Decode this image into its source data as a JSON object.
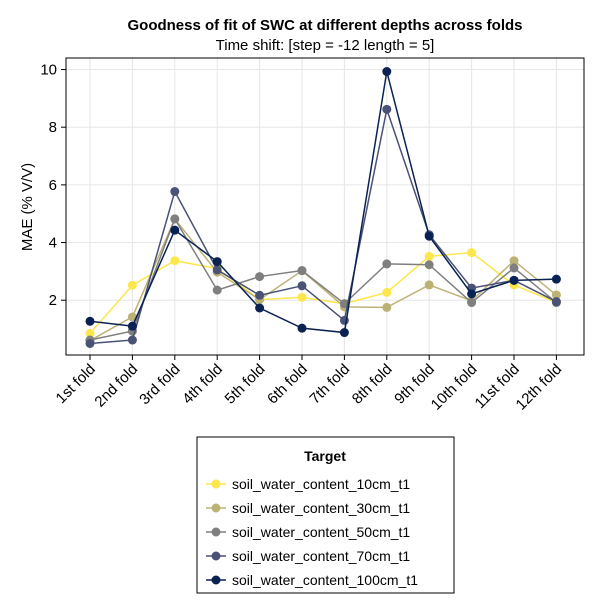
{
  "chart_data": {
    "type": "line",
    "title": "Goodness of fit of SWC at different depths across folds",
    "subtitle": "Time shift: [step = -12 length = 5]",
    "xlabel": "",
    "ylabel": "MAE (% V/V)",
    "categories": [
      "1st fold",
      "2nd fold",
      "3rd fold",
      "4th fold",
      "5th fold",
      "6th fold",
      "7th fold",
      "8th fold",
      "9th fold",
      "10th fold",
      "11st fold",
      "12th fold"
    ],
    "yticks": [
      "2",
      "4",
      "6",
      "8",
      "10"
    ],
    "ylim": [
      0.1,
      10.4
    ],
    "grid": true,
    "legend": {
      "title": "Target",
      "placement": "bottom"
    },
    "series": [
      {
        "name": "soil_water_content_10cm_t1",
        "color": "#fde74c",
        "values": [
          0.85,
          2.52,
          3.37,
          3.1,
          2.02,
          2.1,
          1.88,
          2.27,
          3.52,
          3.65,
          2.53,
          1.92
        ]
      },
      {
        "name": "soil_water_content_30cm_t1",
        "color": "#bdb276",
        "values": [
          0.6,
          1.42,
          4.82,
          2.97,
          2.02,
          3.02,
          1.77,
          1.75,
          2.53,
          1.98,
          3.37,
          2.18
        ]
      },
      {
        "name": "soil_water_content_50cm_t1",
        "color": "#7f7f7f",
        "values": [
          0.62,
          0.93,
          4.82,
          2.35,
          2.82,
          3.03,
          1.88,
          3.26,
          3.23,
          1.92,
          3.12,
          1.92
        ]
      },
      {
        "name": "soil_water_content_70cm_t1",
        "color": "#4a5275",
        "values": [
          0.5,
          0.62,
          5.77,
          3.05,
          2.17,
          2.5,
          1.3,
          8.62,
          4.27,
          2.42,
          2.69,
          1.95
        ]
      },
      {
        "name": "soil_water_content_100cm_t1",
        "color": "#0a2153",
        "values": [
          1.27,
          1.1,
          4.43,
          3.34,
          1.73,
          1.03,
          0.88,
          9.93,
          4.22,
          2.22,
          2.69,
          2.73
        ]
      }
    ]
  }
}
